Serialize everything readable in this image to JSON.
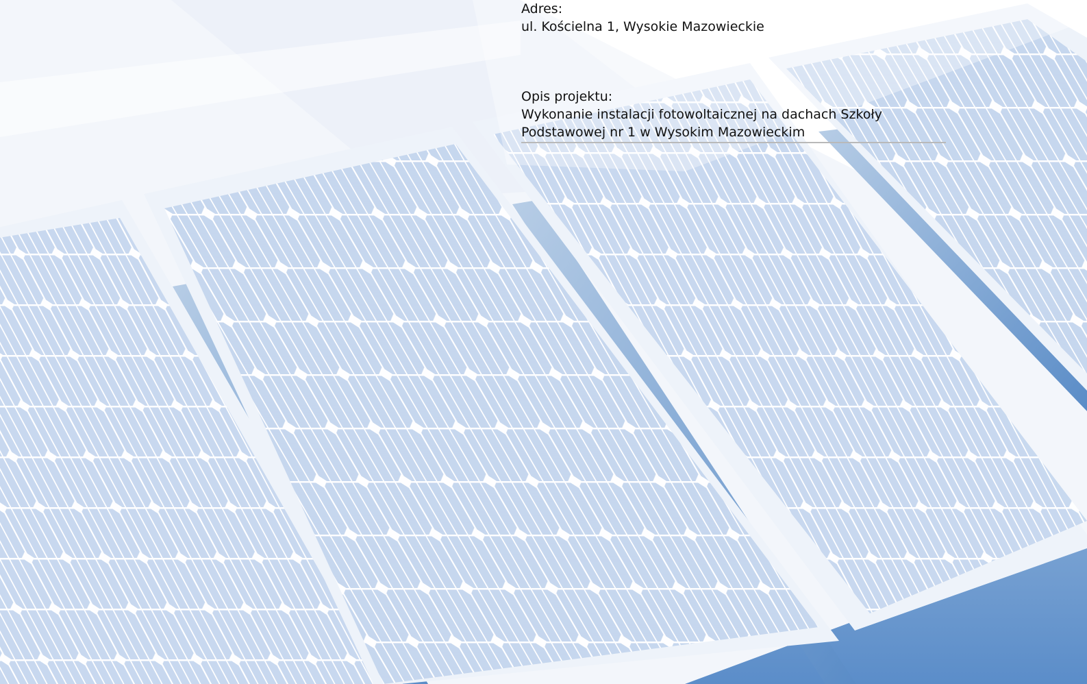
{
  "address": {
    "label": "Adres:",
    "value": "ul. Kościelna 1, Wysokie Mazowieckie"
  },
  "project": {
    "label": "Opis projektu:",
    "lines": [
      "Wykonanie instalacji fotowoltaicznej na dachach Szkoły",
      "Podstawowej nr 1 w Wysokim Mazowieckim"
    ]
  },
  "colors": {
    "panel_cell": "#c5d6ee",
    "panel_frame": "#eef3fa",
    "shadow_blue": "#5f8fc6",
    "text": "#111111",
    "rule": "#b9b9b9"
  }
}
